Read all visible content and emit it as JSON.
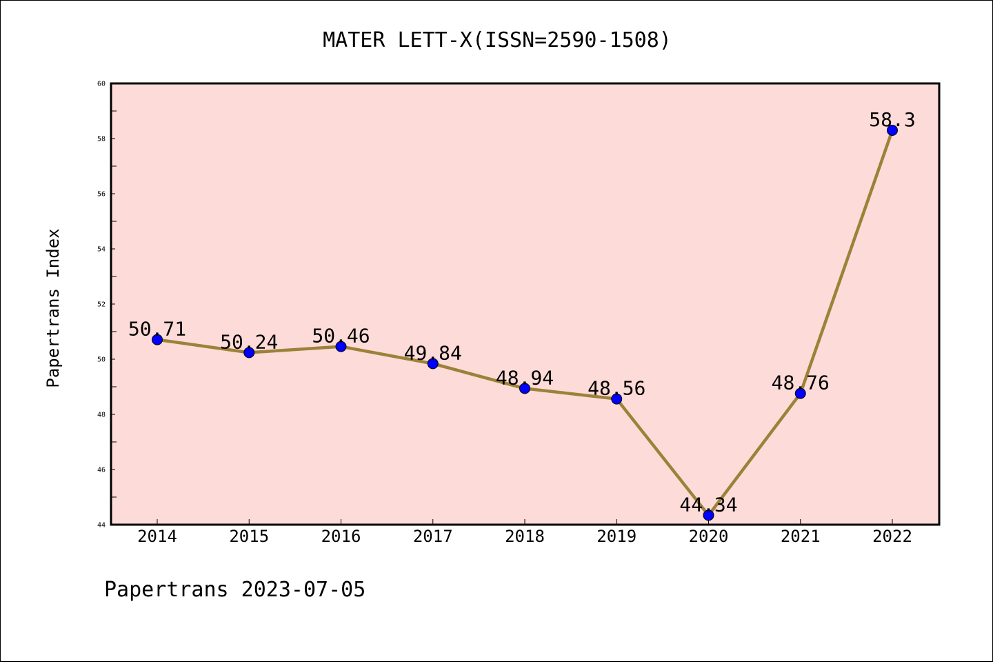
{
  "chart_data": {
    "type": "line",
    "title": "MATER LETT-X(ISSN=2590-1508)",
    "ylabel": "Papertrans Index",
    "xlabel": "",
    "categories": [
      "2014",
      "2015",
      "2016",
      "2017",
      "2018",
      "2019",
      "2020",
      "2021",
      "2022"
    ],
    "values": [
      50.71,
      50.24,
      50.46,
      49.84,
      48.94,
      48.56,
      44.34,
      48.76,
      58.3
    ],
    "data_labels": [
      "50.71",
      "50.24",
      "50.46",
      "49.84",
      "48.94",
      "48.56",
      "44.34",
      "48.76",
      "58.3"
    ],
    "ylim": [
      44,
      60
    ],
    "yticks": [
      44,
      46,
      48,
      50,
      52,
      54,
      56,
      58,
      60
    ],
    "grid": false,
    "colors": {
      "plot_background": "#fddbd8",
      "line": "#9b8238",
      "marker": "#0000ff"
    }
  },
  "footer": "Papertrans 2023-07-05"
}
